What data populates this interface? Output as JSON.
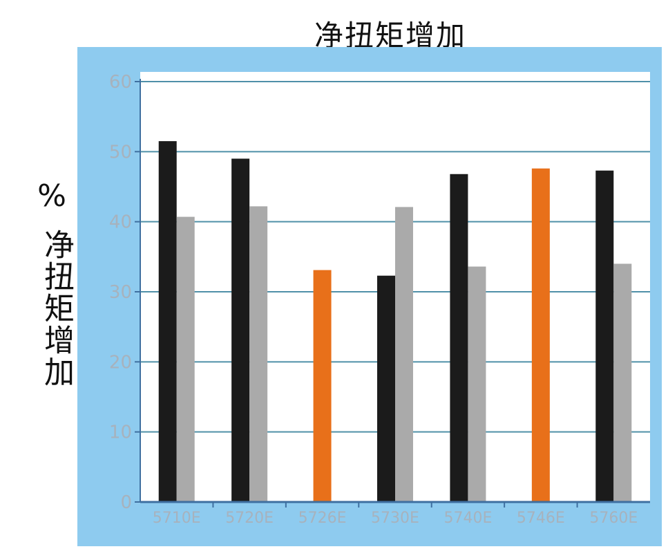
{
  "chart_data": {
    "type": "bar",
    "title": "净扭矩增加",
    "ylabel": "净扭矩增加",
    "ylabel_unit": "%",
    "xlabel": "",
    "ylim": [
      0,
      60
    ],
    "yticks": [
      "0",
      "10",
      "20",
      "30",
      "40",
      "50",
      "60"
    ],
    "grid": true,
    "categories": [
      "5710E",
      "5720E",
      "5726E",
      "5730E",
      "5740E",
      "5746E",
      "5760E"
    ],
    "series": [
      {
        "values": [
          51.5,
          49,
          null,
          32.3,
          46.8,
          null,
          47.3
        ],
        "color": "#1b1b1b"
      },
      {
        "values": [
          null,
          null,
          33.1,
          null,
          null,
          47.6,
          null
        ],
        "color": "#e8701a"
      },
      {
        "values": [
          40.7,
          42.2,
          null,
          42.1,
          33.6,
          null,
          34.0
        ],
        "color": "#aaaaaa"
      }
    ],
    "colors": {
      "frame": "#8ecbef",
      "plot_bg": "#ffffff",
      "grid": "#4f90a8",
      "axis": "#3e6fa0",
      "tick_label": "#a7b2bd"
    }
  }
}
